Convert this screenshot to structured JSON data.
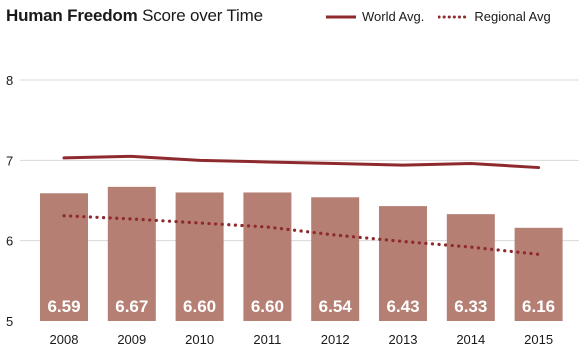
{
  "chart_data": {
    "type": "bar",
    "title_bold": "Human Freedom",
    "title_rest": " Score over Time",
    "categories": [
      "2008",
      "2009",
      "2010",
      "2011",
      "2012",
      "2013",
      "2014",
      "2015"
    ],
    "values": [
      6.59,
      6.67,
      6.6,
      6.6,
      6.54,
      6.43,
      6.33,
      6.16
    ],
    "value_labels": [
      "6.59",
      "6.67",
      "6.60",
      "6.60",
      "6.54",
      "6.43",
      "6.33",
      "6.16"
    ],
    "series": [
      {
        "name": "World Avg.",
        "type": "line",
        "style": "solid",
        "values": [
          7.03,
          7.05,
          7.0,
          6.98,
          6.96,
          6.94,
          6.96,
          6.91
        ]
      },
      {
        "name": "Regional Avg",
        "type": "line",
        "style": "dotted",
        "values": [
          6.31,
          6.27,
          6.22,
          6.17,
          6.07,
          5.99,
          5.92,
          5.83
        ]
      }
    ],
    "y_ticks": [
      "5",
      "6",
      "7",
      "8"
    ],
    "ylim": [
      5,
      8
    ],
    "grid": true,
    "legend_position": "top-right",
    "colors": {
      "bar": "#b57f74",
      "world_line": "#8e2a2e",
      "regional_line": "#8e2a2e",
      "grid": "#d9d9d9"
    }
  }
}
